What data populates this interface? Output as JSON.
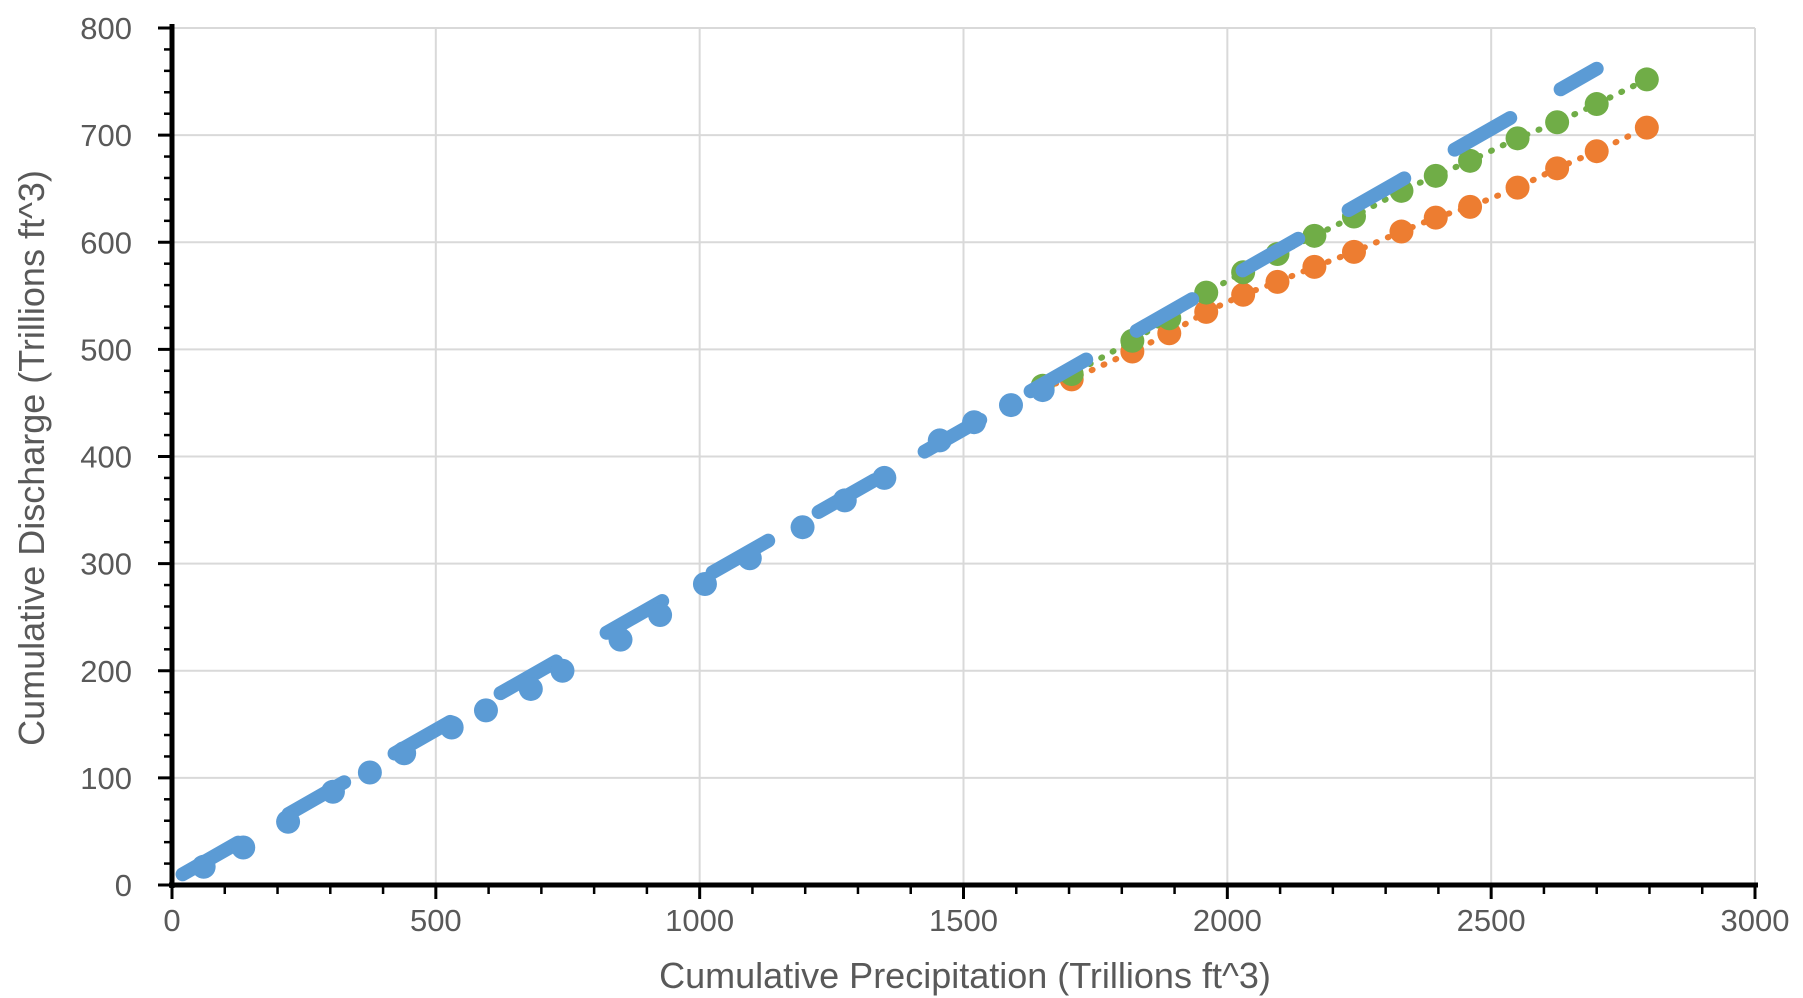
{
  "chart_data": {
    "type": "scatter",
    "title": "",
    "xlabel": "Cumulative Precipitation (Trillions ft^3)",
    "ylabel": "Cumulative Discharge (Trillions ft^3)",
    "xlim": [
      0,
      3000
    ],
    "ylim": [
      0,
      800
    ],
    "x_ticks": [
      "0",
      "500",
      "1000",
      "1500",
      "2000",
      "2500",
      "3000"
    ],
    "y_ticks": [
      "0",
      "100",
      "200",
      "300",
      "400",
      "500",
      "600",
      "700",
      "800"
    ],
    "grid": true,
    "legend": "none",
    "series": [
      {
        "color": "#ED7D31",
        "style": "dotted",
        "points": [
          [
            1650,
            465
          ],
          [
            1705,
            472
          ],
          [
            1820,
            498
          ],
          [
            1890,
            515
          ],
          [
            1960,
            535
          ],
          [
            2030,
            551
          ],
          [
            2095,
            563
          ],
          [
            2165,
            577
          ],
          [
            2240,
            591
          ],
          [
            2330,
            610
          ],
          [
            2395,
            623
          ],
          [
            2460,
            633
          ],
          [
            2550,
            651
          ],
          [
            2625,
            669
          ],
          [
            2700,
            685
          ],
          [
            2795,
            707
          ]
        ]
      },
      {
        "color": "#70AD47",
        "style": "dotted",
        "points": [
          [
            1650,
            466
          ],
          [
            1705,
            477
          ],
          [
            1820,
            508
          ],
          [
            1890,
            529
          ],
          [
            1960,
            553
          ],
          [
            2030,
            572
          ],
          [
            2095,
            589
          ],
          [
            2165,
            606
          ],
          [
            2240,
            624
          ],
          [
            2330,
            648
          ],
          [
            2395,
            662
          ],
          [
            2460,
            676
          ],
          [
            2550,
            697
          ],
          [
            2625,
            712
          ],
          [
            2700,
            729
          ],
          [
            2795,
            752
          ]
        ]
      },
      {
        "color": "#5B9BD5",
        "style": "dashed",
        "points": [
          [
            60,
            17
          ],
          [
            135,
            35
          ],
          [
            220,
            59
          ],
          [
            305,
            87
          ],
          [
            375,
            105
          ],
          [
            440,
            123
          ],
          [
            530,
            147
          ],
          [
            595,
            163
          ],
          [
            680,
            183
          ],
          [
            740,
            200
          ],
          [
            850,
            229
          ],
          [
            925,
            252
          ],
          [
            1010,
            281
          ],
          [
            1095,
            305
          ],
          [
            1195,
            334
          ],
          [
            1275,
            359
          ],
          [
            1350,
            380
          ],
          [
            1455,
            415
          ],
          [
            1520,
            432
          ],
          [
            1590,
            448
          ],
          [
            1650,
            462
          ]
        ],
        "trend": [
          [
            20,
            10
          ],
          [
            2700,
            762
          ]
        ]
      }
    ]
  }
}
